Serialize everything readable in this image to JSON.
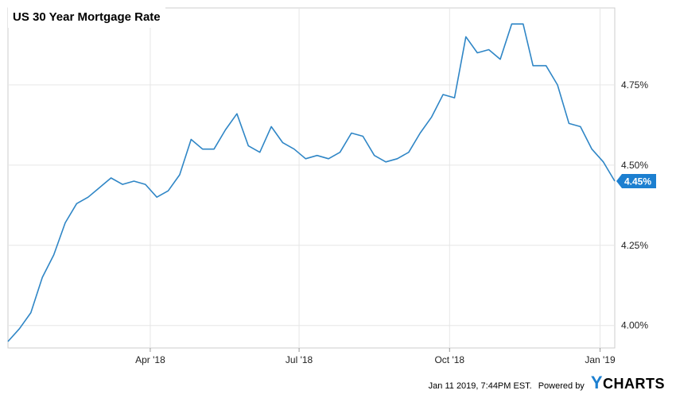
{
  "chart_data": {
    "type": "line",
    "title": "US 30 Year Mortgage Rate",
    "x_tick_labels": [
      "Apr '18",
      "Jul '18",
      "Oct '18",
      "Jan '19"
    ],
    "y_tick_labels": [
      "4.00%",
      "4.25%",
      "4.50%",
      "4.75%"
    ],
    "y_ticks": [
      4.0,
      4.25,
      4.5,
      4.75
    ],
    "ylim": [
      3.93,
      4.99
    ],
    "x_start": "2018-01-04",
    "x_end": "2019-01-10",
    "grid": true,
    "series": [
      {
        "color": "#2f86c6",
        "x": [
          "2018-01-04",
          "2018-01-11",
          "2018-01-18",
          "2018-01-25",
          "2018-02-01",
          "2018-02-08",
          "2018-02-15",
          "2018-02-22",
          "2018-03-01",
          "2018-03-08",
          "2018-03-15",
          "2018-03-22",
          "2018-03-29",
          "2018-04-05",
          "2018-04-12",
          "2018-04-19",
          "2018-04-26",
          "2018-05-03",
          "2018-05-10",
          "2018-05-17",
          "2018-05-24",
          "2018-05-31",
          "2018-06-07",
          "2018-06-14",
          "2018-06-21",
          "2018-06-28",
          "2018-07-05",
          "2018-07-12",
          "2018-07-19",
          "2018-07-26",
          "2018-08-02",
          "2018-08-09",
          "2018-08-16",
          "2018-08-23",
          "2018-08-30",
          "2018-09-06",
          "2018-09-13",
          "2018-09-20",
          "2018-09-27",
          "2018-10-04",
          "2018-10-11",
          "2018-10-18",
          "2018-10-25",
          "2018-11-01",
          "2018-11-08",
          "2018-11-15",
          "2018-11-21",
          "2018-11-29",
          "2018-12-06",
          "2018-12-13",
          "2018-12-20",
          "2018-12-27",
          "2019-01-03",
          "2019-01-10"
        ],
        "values": [
          3.95,
          3.99,
          4.04,
          4.15,
          4.22,
          4.32,
          4.38,
          4.4,
          4.43,
          4.46,
          4.44,
          4.45,
          4.44,
          4.4,
          4.42,
          4.47,
          4.58,
          4.55,
          4.55,
          4.61,
          4.66,
          4.56,
          4.54,
          4.62,
          4.57,
          4.55,
          4.52,
          4.53,
          4.52,
          4.54,
          4.6,
          4.59,
          4.53,
          4.51,
          4.52,
          4.54,
          4.6,
          4.65,
          4.72,
          4.71,
          4.9,
          4.85,
          4.86,
          4.83,
          4.94,
          4.94,
          4.81,
          4.81,
          4.75,
          4.63,
          4.62,
          4.55,
          4.51,
          4.45
        ]
      }
    ],
    "last_value_label": "4.45%"
  },
  "footer": {
    "timestamp": "Jan 11 2019, 7:44PM EST.",
    "powered_by": "Powered by",
    "brand_y": "Y",
    "brand_rest": "CHARTS"
  },
  "colors": {
    "line": "#2f86c6",
    "label_bg": "#1c7fd0",
    "grid": "#e6e6e6",
    "frame": "#cccccc"
  }
}
